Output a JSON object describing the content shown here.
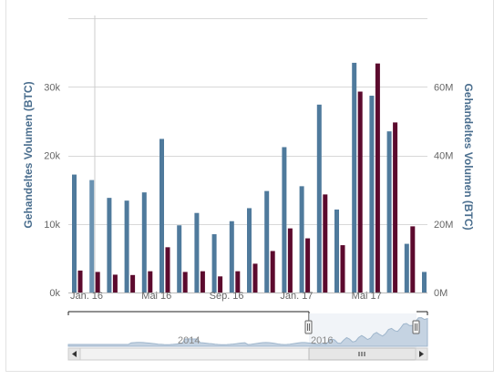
{
  "chart_data": {
    "type": "bar",
    "ylabel_left": "Gehandeltes Volumen (BTC)",
    "ylabel_right": "Gehandeltes Volumen (BTC)",
    "ylim_left": [
      0,
      40000
    ],
    "ylim_right": [
      0,
      80000000
    ],
    "yticks_left": [
      "0k",
      "10k",
      "20k",
      "30k"
    ],
    "yticks_right": [
      "0M",
      "20M",
      "40M",
      "60M"
    ],
    "xticks": [
      "Jan. 16",
      "Mai 16",
      "Sep. 16",
      "Jan. 17",
      "Mai 17"
    ],
    "grid": true,
    "months": [
      "2016-01",
      "2016-02",
      "2016-03",
      "2016-04",
      "2016-05",
      "2016-06",
      "2016-07",
      "2016-08",
      "2016-09",
      "2016-10",
      "2016-11",
      "2016-12",
      "2017-01",
      "2017-02",
      "2017-03",
      "2017-04",
      "2017-05",
      "2017-06",
      "2017-07",
      "2017-08",
      "2017-09"
    ],
    "series": [
      {
        "axis": "left",
        "color": "#4f7a9c",
        "values": [
          17200,
          16400,
          13800,
          13400,
          14600,
          22400,
          9800,
          11600,
          8500,
          10400,
          12300,
          14800,
          21200,
          15500,
          27400,
          12100,
          33500,
          28700,
          23500,
          7100,
          3000
        ]
      },
      {
        "axis": "right",
        "color": "#5c0a2e",
        "values": [
          6400000,
          6000000,
          5200000,
          5100000,
          6200000,
          13200000,
          6000000,
          6200000,
          4700000,
          6200000,
          8400000,
          12100000,
          18700000,
          15800000,
          28600000,
          13800000,
          58600000,
          66800000,
          49600000,
          19300000,
          0
        ]
      }
    ]
  },
  "navigator": {
    "labels": [
      "2014",
      "2016"
    ]
  },
  "colors": {
    "volume_btc": "#4f7a9c",
    "volume_fiat": "#5c0a2e",
    "grid": "#d8d8d8",
    "navigator_fill": "#c5d3e2"
  }
}
